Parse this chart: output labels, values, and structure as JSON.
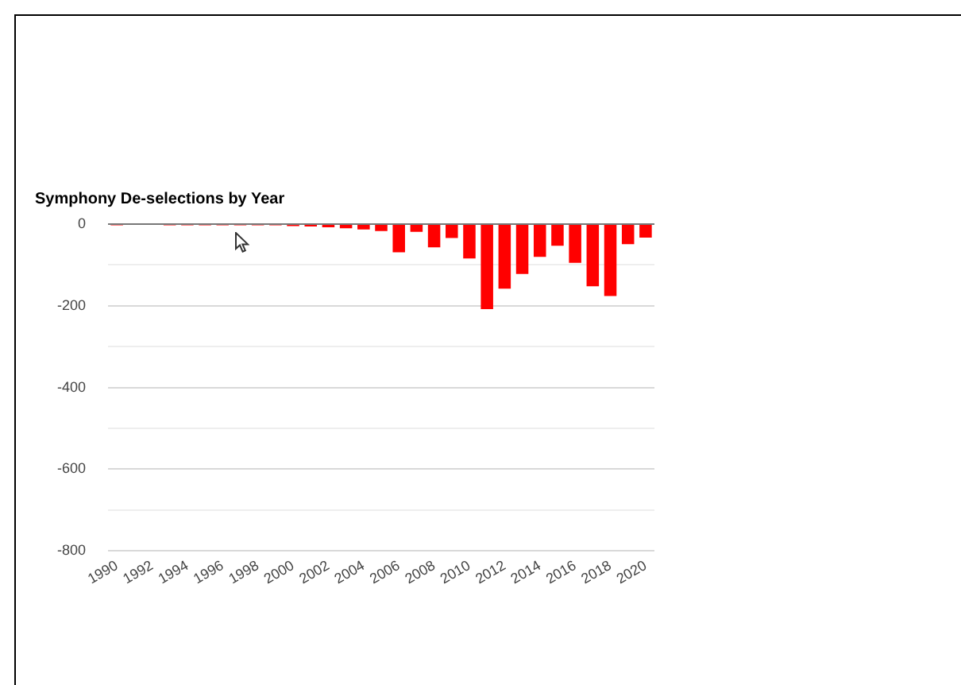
{
  "chart_data": {
    "type": "bar",
    "title": "Symphony De-selections by Year",
    "categories": [
      "1990",
      null,
      "1992",
      null,
      "1994",
      null,
      "1996",
      null,
      "1998",
      null,
      "2000",
      null,
      "2002",
      null,
      "2004",
      null,
      "2006",
      null,
      "2008",
      null,
      "2010",
      null,
      "2012",
      null,
      "2014",
      null,
      "2016",
      null,
      "2018",
      null,
      "2020"
    ],
    "values": [
      -3,
      0,
      0,
      -3,
      -3,
      -3,
      -3,
      -3,
      -3,
      -3,
      -5,
      -6,
      -8,
      -10,
      -13,
      -17,
      -69,
      -19,
      -57,
      -34,
      -84,
      -208,
      -158,
      -122,
      -80,
      -53,
      -95,
      -152,
      -176,
      -49,
      -33
    ],
    "color": "#ff0000",
    "ylim": [
      -800,
      0
    ],
    "yticks": [
      {
        "value": -800,
        "label": "-800"
      },
      {
        "value": -700,
        "label": null
      },
      {
        "value": -600,
        "label": "-600"
      },
      {
        "value": -500,
        "label": null
      },
      {
        "value": -400,
        "label": "-400"
      },
      {
        "value": -300,
        "label": null
      },
      {
        "value": -200,
        "label": "-200"
      },
      {
        "value": -100,
        "label": null
      },
      0
    ],
    "grid": "y",
    "legend": false
  }
}
